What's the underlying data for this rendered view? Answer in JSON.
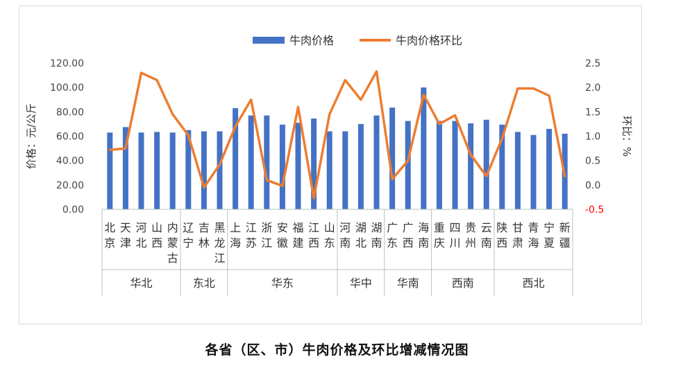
{
  "caption": "各省（区、市）牛肉价格及环比增减情况图",
  "chart_data": {
    "type": "bar+line",
    "categories": [
      "北京",
      "天津",
      "河北",
      "山西",
      "内蒙古",
      "辽宁",
      "吉林",
      "黑龙江",
      "上海",
      "江苏",
      "浙江",
      "安徽",
      "福建",
      "江西",
      "山东",
      "河南",
      "湖北",
      "湖南",
      "广东",
      "广西",
      "海南",
      "重庆",
      "四川",
      "贵州",
      "云南",
      "陕西",
      "甘肃",
      "青海",
      "宁夏",
      "新疆"
    ],
    "category_labels": [
      "北京",
      "天津",
      "河北",
      "山西",
      "内蒙古",
      "辽宁",
      "吉林",
      "黑龙江",
      "上海",
      "江苏",
      "浙江",
      "安徽",
      "福建",
      "江西",
      "山东",
      "河南",
      "湖北",
      "湖南",
      "广东",
      "广西",
      "海南",
      "重庆",
      "四川",
      "贵州",
      "云南",
      "陕西",
      "甘肃",
      "青海",
      "宁夏",
      "新疆"
    ],
    "groups": [
      {
        "name": "华北",
        "count": 5
      },
      {
        "name": "东北",
        "count": 3
      },
      {
        "name": "华东",
        "count": 7
      },
      {
        "name": "华中",
        "count": 3
      },
      {
        "name": "华南",
        "count": 3
      },
      {
        "name": "西南",
        "count": 4
      },
      {
        "name": "西北",
        "count": 5
      }
    ],
    "series": [
      {
        "name": "牛肉价格",
        "type": "bar",
        "axis": "left",
        "color": "#4472c4",
        "values": [
          63.0,
          67.5,
          63.0,
          63.5,
          63.0,
          65.0,
          64.0,
          64.0,
          83.0,
          77.0,
          77.0,
          69.5,
          71.0,
          74.5,
          64.0,
          64.0,
          70.0,
          77.0,
          83.5,
          72.5,
          100.0,
          72.5,
          72.5,
          70.5,
          73.5,
          69.5,
          63.5,
          61.0,
          66.0,
          62.0
        ]
      },
      {
        "name": "牛肉价格环比",
        "type": "line",
        "axis": "right",
        "color": "#ed7d31",
        "values": [
          0.72,
          0.75,
          2.3,
          2.15,
          1.45,
          1.02,
          -0.05,
          0.42,
          1.2,
          1.75,
          0.1,
          -0.02,
          1.6,
          -0.27,
          1.45,
          2.15,
          1.75,
          2.33,
          0.12,
          0.5,
          1.85,
          1.25,
          1.43,
          0.62,
          0.18,
          0.95,
          1.98,
          1.98,
          1.83,
          0.18
        ]
      }
    ],
    "y_left": {
      "label": "价格：元/公斤",
      "min": 0,
      "max": 120,
      "ticks": [
        "0.00",
        "20.00",
        "40.00",
        "60.00",
        "80.00",
        "100.00",
        "120.00"
      ]
    },
    "y_right": {
      "label": "环比：%",
      "min": -0.5,
      "max": 2.5,
      "ticks": [
        "-0.5",
        "0.0",
        "0.5",
        "1.0",
        "1.5",
        "2.0",
        "2.5"
      ],
      "negative_color": "#ff0000"
    },
    "legend_position": "top-center",
    "grid": false
  }
}
